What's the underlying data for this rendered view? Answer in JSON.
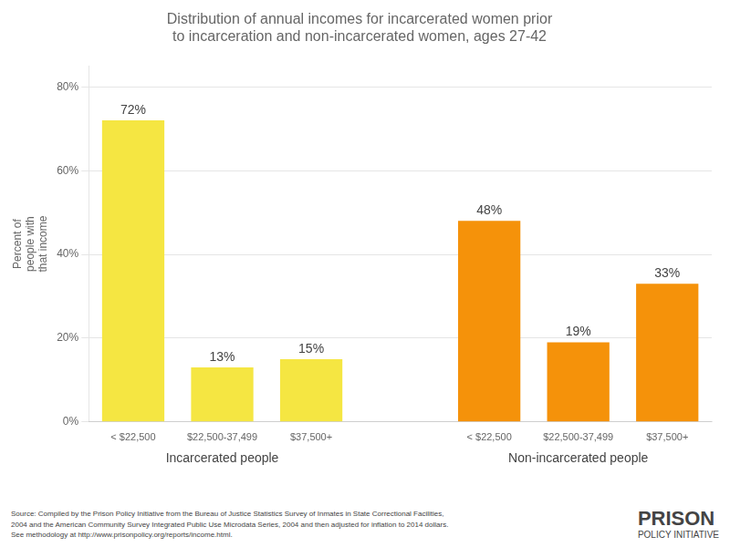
{
  "chart_data": {
    "type": "bar",
    "title": "Distribution of annual incomes for incarcerated women prior\nto incarceration and non-incarcerated women, ages 27-42",
    "y_label": "Percent of\npeople with\nthat income",
    "categories": [
      "< $22,500",
      "$22,500-37,499",
      "$37,500+",
      null,
      "< $22,500",
      "$22,500-37,499",
      "$37,500+"
    ],
    "series": [
      {
        "name": "Incarcerated people",
        "color": "#f5e642",
        "values": [
          72,
          13,
          15,
          null,
          null,
          null,
          null
        ],
        "value_labels": [
          "72%",
          "13%",
          "15%",
          null,
          null,
          null,
          null
        ]
      },
      {
        "name": "Non-incarcerated people",
        "color": "#f5920a",
        "values": [
          null,
          null,
          null,
          null,
          48,
          19,
          33
        ],
        "value_labels": [
          null,
          null,
          null,
          null,
          "48%",
          "19%",
          "33%"
        ]
      }
    ],
    "ylim": [
      0,
      85
    ],
    "yticks": [
      {
        "value": 0,
        "label": "0%"
      },
      {
        "value": 20,
        "label": "20%"
      },
      {
        "value": 40,
        "label": "40%"
      },
      {
        "value": 60,
        "label": "60%"
      },
      {
        "value": 80,
        "label": "80%"
      }
    ],
    "grid": true,
    "data_labels": true,
    "annotations": [
      "Source: Compiled by the Prison Policy Initiative from the Bureau of Justice Statistics Survey of Inmates in State Correctional Facilities,\n2004 and the American Community Survey Integrated Public Use Microdata Series, 2004 and then adjusted for inflation to 2014 dollars.\nSee methodology at http://www.prisonpolicy.org/reports/income.html.",
      "PRISON",
      "POLICY INITIATIVE"
    ]
  }
}
